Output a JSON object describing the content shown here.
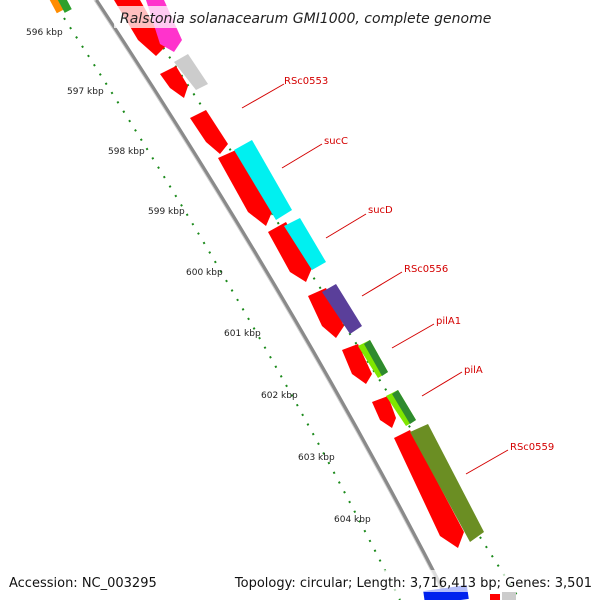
{
  "title": "Ralstonia solanacearum GMI1000, complete genome",
  "footer": {
    "accession": "Accession: NC_003295",
    "summary": "Topology: circular; Length: 3,716,413 bp; Genes: 3,501"
  },
  "colors": {
    "backbone": "#8a8a8a",
    "tick": "#1b8a1b",
    "label": "#d40000",
    "red_gene": "#ff0000"
  },
  "kbp_ticks": [
    "596 kbp",
    "597 kbp",
    "598 kbp",
    "599 kbp",
    "600 kbp",
    "601 kbp",
    "602 kbp",
    "603 kbp",
    "604 kbp"
  ],
  "gene_labels": [
    {
      "name": "RSc0553",
      "color": "#cccccc"
    },
    {
      "name": "sucC",
      "color": "#00f0f0"
    },
    {
      "name": "sucD",
      "color": "#00f0f0"
    },
    {
      "name": "RSc0556",
      "color": "#5a3f9a"
    },
    {
      "name": "pilA1",
      "color": "#7fe600"
    },
    {
      "name": "pilA",
      "color": "#7fe600"
    },
    {
      "name": "RSc0559",
      "color": "#6b8e23"
    }
  ]
}
